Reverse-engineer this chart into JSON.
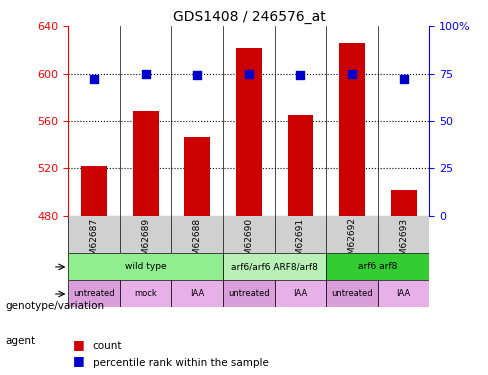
{
  "title": "GDS1408 / 246576_at",
  "samples": [
    "GSM62687",
    "GSM62689",
    "GSM62688",
    "GSM62690",
    "GSM62691",
    "GSM62692",
    "GSM62693"
  ],
  "bar_values": [
    522,
    568,
    546,
    622,
    565,
    626,
    502
  ],
  "percentile_values": [
    72,
    75,
    74,
    75,
    74,
    75,
    72
  ],
  "bar_bottom": 480,
  "ylim_left": [
    480,
    640
  ],
  "ylim_right": [
    0,
    100
  ],
  "yticks_left": [
    480,
    520,
    560,
    600,
    640
  ],
  "yticks_right": [
    0,
    25,
    50,
    75,
    100
  ],
  "bar_color": "#cc0000",
  "percentile_color": "#0000cc",
  "bg_color": "#f0f0f0",
  "genotype_groups": [
    {
      "label": "wild type",
      "start": 0,
      "end": 3,
      "color": "#90ee90"
    },
    {
      "label": "arf6/arf6 ARF8/arf8",
      "start": 3,
      "end": 5,
      "color": "#b8f0b8"
    },
    {
      "label": "arf6 arf8",
      "start": 5,
      "end": 7,
      "color": "#33cc33"
    }
  ],
  "agent_groups": [
    {
      "label": "untreated",
      "start": 0,
      "end": 1,
      "color": "#da9fda"
    },
    {
      "label": "mock",
      "start": 1,
      "end": 2,
      "color": "#e8b0e8"
    },
    {
      "label": "IAA",
      "start": 2,
      "end": 3,
      "color": "#e8b0e8"
    },
    {
      "label": "untreated",
      "start": 3,
      "end": 4,
      "color": "#da9fda"
    },
    {
      "label": "IAA",
      "start": 4,
      "end": 5,
      "color": "#e8b0e8"
    },
    {
      "label": "untreated",
      "start": 5,
      "end": 6,
      "color": "#da9fda"
    },
    {
      "label": "IAA",
      "start": 6,
      "end": 7,
      "color": "#e8b0e8"
    }
  ],
  "legend_count_label": "count",
  "legend_percentile_label": "percentile rank within the sample",
  "xlabel_genotype": "genotype/variation",
  "xlabel_agent": "agent"
}
